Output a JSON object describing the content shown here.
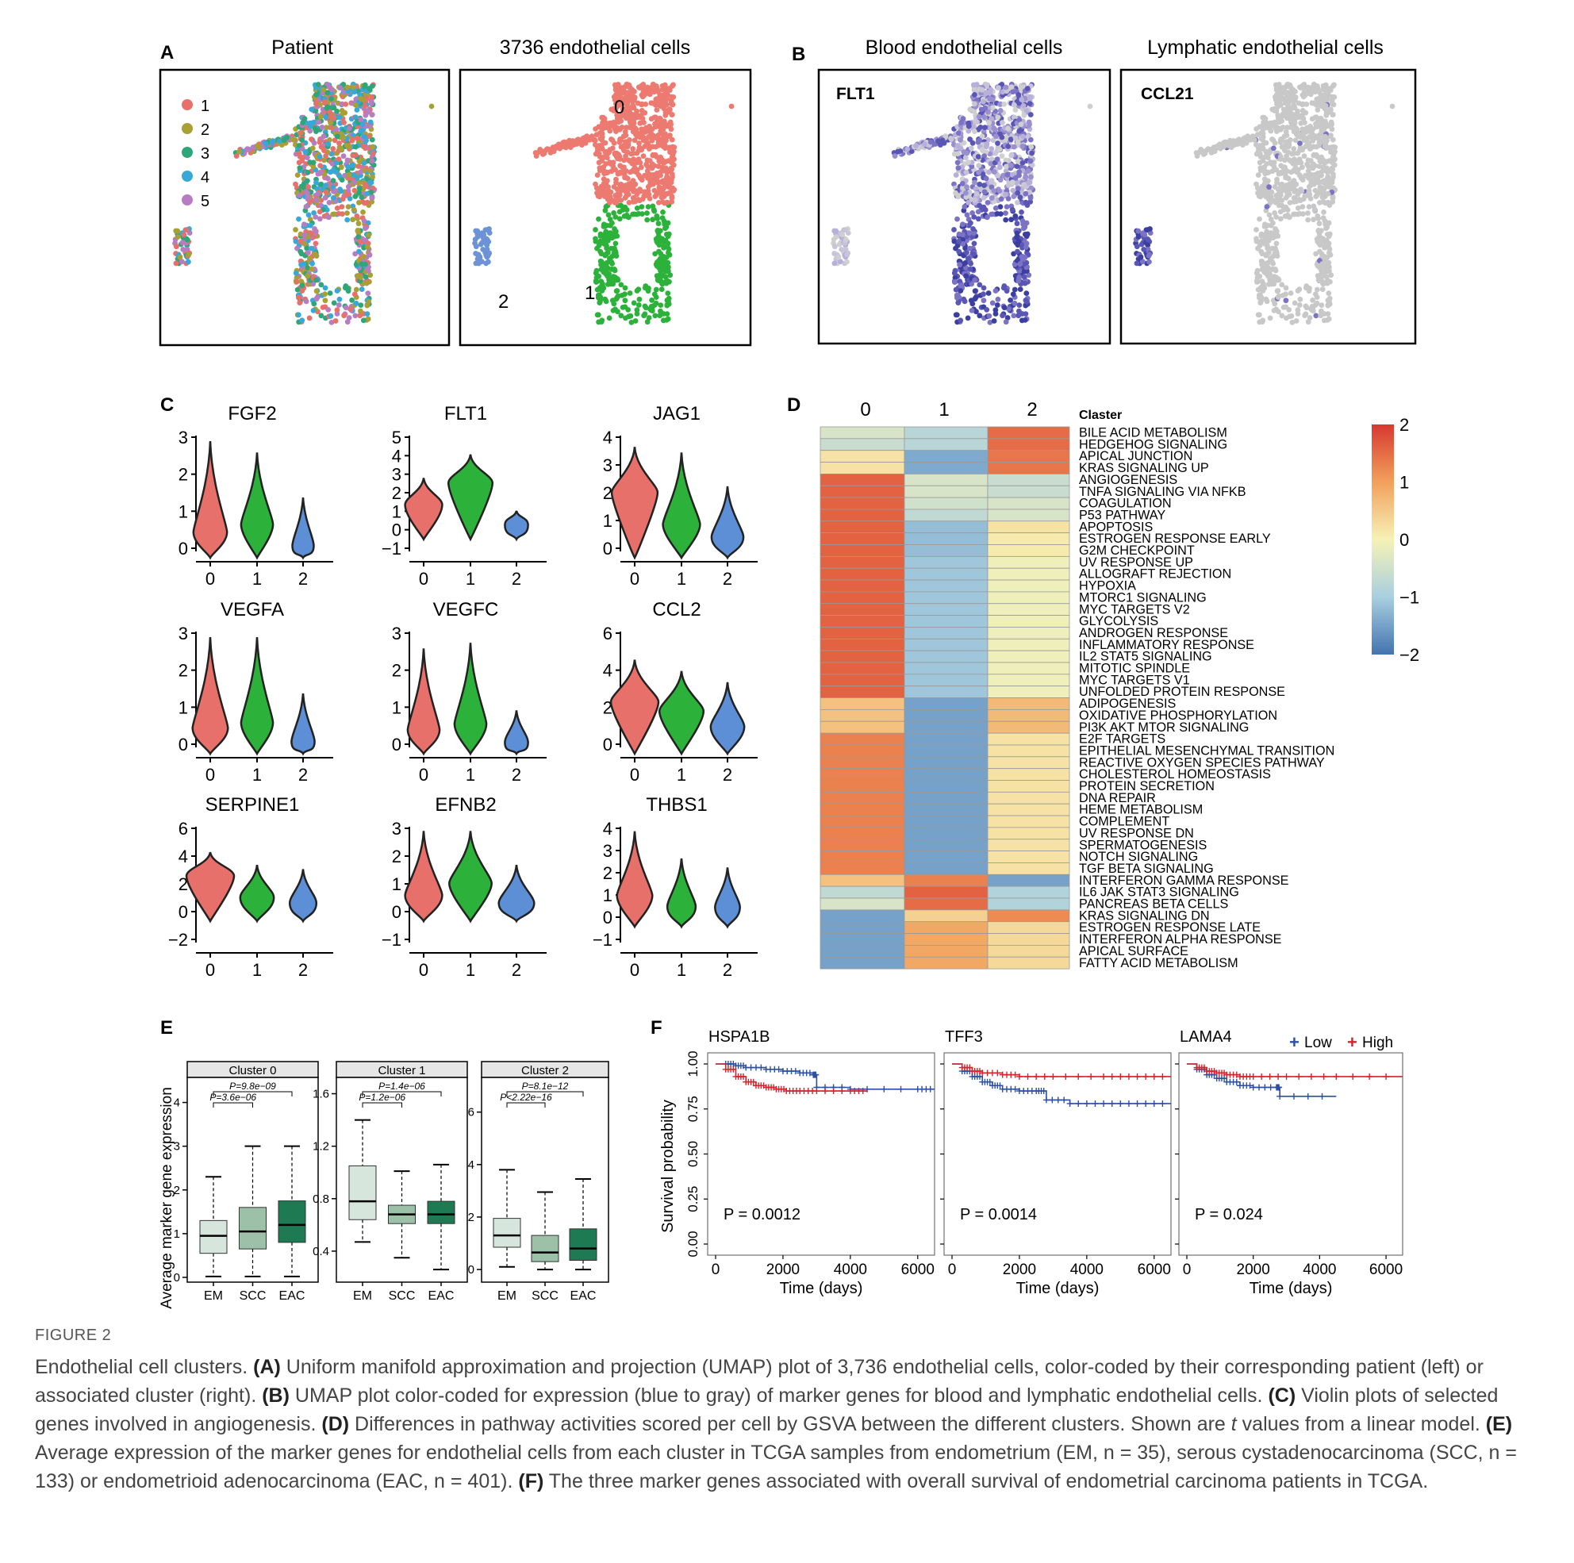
{
  "panels": {
    "A": {
      "letter": "A",
      "title_left": "Patient",
      "title_right": "3736 endothelial cells",
      "legend": [
        "1",
        "2",
        "3",
        "4",
        "5"
      ],
      "legend_colors": [
        "#e8706a",
        "#a8a034",
        "#2fa67a",
        "#38a8d8",
        "#b77dc2"
      ],
      "cluster_labels": [
        "0",
        "1",
        "2"
      ],
      "cluster_colors": [
        "#ec7a70",
        "#2cb23a",
        "#6b93d6"
      ]
    },
    "B": {
      "letter": "B",
      "title_left": "Blood endothelial cells",
      "title_right": "Lymphatic endothelial cells",
      "gene_left": "FLT1",
      "gene_right": "CCL21"
    },
    "C": {
      "letter": "C",
      "x_ticks": [
        "0",
        "1",
        "2"
      ],
      "violins": [
        {
          "gene": "FGF2",
          "y_ticks": [
            "0",
            "1",
            "2",
            "3"
          ]
        },
        {
          "gene": "FLT1",
          "y_ticks": [
            "−1",
            "0",
            "1",
            "2",
            "3",
            "4",
            "5"
          ]
        },
        {
          "gene": "JAG1",
          "y_ticks": [
            "0",
            "1",
            "2",
            "3",
            "4"
          ]
        },
        {
          "gene": "VEGFA",
          "y_ticks": [
            "0",
            "1",
            "2",
            "3"
          ]
        },
        {
          "gene": "VEGFC",
          "y_ticks": [
            "0",
            "1",
            "2",
            "3"
          ]
        },
        {
          "gene": "CCL2",
          "y_ticks": [
            "0",
            "2",
            "4",
            "6"
          ]
        },
        {
          "gene": "SERPINE1",
          "y_ticks": [
            "−2",
            "0",
            "2",
            "4",
            "6"
          ]
        },
        {
          "gene": "EFNB2",
          "y_ticks": [
            "−1",
            "0",
            "1",
            "2",
            "3"
          ]
        },
        {
          "gene": "THBS1",
          "y_ticks": [
            "−1",
            "0",
            "1",
            "2",
            "3",
            "4"
          ]
        }
      ]
    },
    "D": {
      "letter": "D",
      "col_labels": [
        "0",
        "1",
        "2"
      ],
      "row_header": "Claster",
      "colorbar_ticks": [
        "2",
        "1",
        "0",
        "−1",
        "−2"
      ]
    },
    "E": {
      "letter": "E",
      "ylabel": "Average marker gene expression",
      "x_ticks": [
        "EM",
        "SCC",
        "EAC"
      ],
      "boxes": [
        {
          "title": "Cluster 0",
          "y_ticks": [
            "0",
            "1",
            "2",
            "3",
            "4"
          ],
          "p_top": "P=9.8e−09",
          "p_low": "P=3.6e−06"
        },
        {
          "title": "Cluster 1",
          "y_ticks": [
            "0.4",
            "0.8",
            "1.2",
            "1.6"
          ],
          "p_top": "P=1.4e−06",
          "p_low": "P=1.2e−06"
        },
        {
          "title": "Cluster 2",
          "y_ticks": [
            "0",
            "2",
            "4",
            "6"
          ],
          "p_top": "P=8.1e−12",
          "p_low": "P<2.22e−16"
        }
      ]
    },
    "F": {
      "letter": "F",
      "ylabel": "Survival probability",
      "xlabel": "Time (days)",
      "y_ticks": [
        "0.00",
        "0.25",
        "0.50",
        "0.75",
        "1.00"
      ],
      "x_ticks": [
        "0",
        "2000",
        "4000",
        "6000"
      ],
      "legend_low": "Low",
      "legend_high": "High",
      "plots": [
        {
          "gene": "HSPA1B",
          "pval": "P = 0.0012"
        },
        {
          "gene": "TFF3",
          "pval": "P = 0.0014"
        },
        {
          "gene": "LAMA4",
          "pval": "P = 0.024"
        }
      ]
    }
  },
  "chart_data": [
    {
      "type": "heatmap",
      "title": "",
      "columns": [
        "0",
        "1",
        "2"
      ],
      "rows": [
        "BILE ACID METABOLISM",
        "HEDGEHOG SIGNALING",
        "APICAL JUNCTION",
        "KRAS SIGNALING UP",
        "ANGIOGENESIS",
        "TNFA SIGNALING VIA NFKB",
        "COAGULATION",
        "P53 PATHWAY",
        "APOPTOSIS",
        "ESTROGEN RESPONSE EARLY",
        "G2M CHECKPOINT",
        "UV RESPONSE UP",
        "ALLOGRAFT REJECTION",
        "HYPOXIA",
        "MTORC1 SIGNALING",
        "MYC TARGETS V2",
        "GLYCOLYSIS",
        "ANDROGEN RESPONSE",
        "INFLAMMATORY RESPONSE",
        "IL2 STAT5 SIGNALING",
        "MITOTIC SPINDLE",
        "MYC TARGETS V1",
        "UNFOLDED PROTEIN RESPONSE",
        "ADIPOGENESIS",
        "OXIDATIVE PHOSPHORYLATION",
        "PI3K AKT MTOR SIGNALING",
        "E2F TARGETS",
        "EPITHELIAL MESENCHYMAL TRANSITION",
        "REACTIVE OXYGEN SPECIES PATHWAY",
        "CHOLESTEROL HOMEOSTASIS",
        "PROTEIN SECRETION",
        "DNA REPAIR",
        "HEME METABOLISM",
        "COMPLEMENT",
        "UV RESPONSE DN",
        "SPERMATOGENESIS",
        "NOTCH SIGNALING",
        "TGF BETA SIGNALING",
        "INTERFERON GAMMA RESPONSE",
        "IL6 JAK STAT3 SIGNALING",
        "PANCREAS BETA CELLS",
        "KRAS SIGNALING DN",
        "ESTROGEN RESPONSE LATE",
        "INTERFERON ALPHA RESPONSE",
        "APICAL SURFACE",
        "FATTY ACID METABOLISM"
      ],
      "values": [
        [
          -0.4,
          -0.8,
          1.5
        ],
        [
          -0.6,
          -0.8,
          1.5
        ],
        [
          0.2,
          -1.4,
          1.4
        ],
        [
          0.2,
          -1.4,
          1.4
        ],
        [
          1.6,
          -0.4,
          -0.6
        ],
        [
          1.6,
          -0.4,
          -0.6
        ],
        [
          1.6,
          -0.5,
          -0.4
        ],
        [
          1.6,
          -0.7,
          -0.4
        ],
        [
          1.6,
          -1.2,
          0.2
        ],
        [
          1.6,
          -1.2,
          0.1
        ],
        [
          1.6,
          -1.2,
          0.1
        ],
        [
          1.6,
          -1.1,
          -0.1
        ],
        [
          1.6,
          -1.1,
          -0.1
        ],
        [
          1.6,
          -1.1,
          -0.1
        ],
        [
          1.6,
          -1.1,
          -0.1
        ],
        [
          1.6,
          -1.1,
          -0.1
        ],
        [
          1.6,
          -1.1,
          -0.1
        ],
        [
          1.6,
          -1.1,
          -0.1
        ],
        [
          1.6,
          -1.1,
          -0.1
        ],
        [
          1.6,
          -1.1,
          -0.1
        ],
        [
          1.6,
          -1.1,
          -0.1
        ],
        [
          1.6,
          -1.1,
          -0.1
        ],
        [
          1.6,
          -1.1,
          -0.1
        ],
        [
          0.6,
          -1.5,
          0.7
        ],
        [
          0.6,
          -1.5,
          0.7
        ],
        [
          0.6,
          -1.5,
          0.7
        ],
        [
          1.3,
          -1.5,
          0.2
        ],
        [
          1.3,
          -1.5,
          0.2
        ],
        [
          1.3,
          -1.5,
          0.2
        ],
        [
          1.3,
          -1.5,
          0.2
        ],
        [
          1.3,
          -1.5,
          0.2
        ],
        [
          1.3,
          -1.5,
          0.2
        ],
        [
          1.3,
          -1.5,
          0.2
        ],
        [
          1.3,
          -1.5,
          0.2
        ],
        [
          1.3,
          -1.5,
          0.2
        ],
        [
          1.3,
          -1.5,
          0.2
        ],
        [
          1.3,
          -1.5,
          0.2
        ],
        [
          1.3,
          -1.5,
          0.2
        ],
        [
          0.6,
          1.3,
          -1.5
        ],
        [
          -0.7,
          1.6,
          -0.9
        ],
        [
          -0.4,
          1.5,
          -0.9
        ],
        [
          -1.5,
          0.4,
          1.2
        ],
        [
          -1.5,
          0.9,
          0.3
        ],
        [
          -1.5,
          0.9,
          0.3
        ],
        [
          -1.5,
          0.9,
          0.3
        ],
        [
          -1.5,
          0.9,
          0.3
        ]
      ],
      "colorbar_range": [
        -2,
        2
      ]
    },
    {
      "type": "box",
      "title": "Cluster 0",
      "categories": [
        "EM",
        "SCC",
        "EAC"
      ],
      "five_number": [
        [
          0.02,
          0.55,
          0.95,
          1.3,
          2.3
        ],
        [
          0.02,
          0.65,
          1.05,
          1.6,
          3.0
        ],
        [
          0.02,
          0.8,
          1.2,
          1.75,
          3.0
        ]
      ],
      "ylim": [
        0,
        4.5
      ]
    },
    {
      "type": "box",
      "title": "Cluster 1",
      "categories": [
        "EM",
        "SCC",
        "EAC"
      ],
      "five_number": [
        [
          0.47,
          0.64,
          0.78,
          1.05,
          1.4
        ],
        [
          0.35,
          0.61,
          0.68,
          0.75,
          1.01
        ],
        [
          0.26,
          0.61,
          0.68,
          0.78,
          1.06
        ]
      ],
      "ylim": [
        0.2,
        1.7
      ]
    },
    {
      "type": "box",
      "title": "Cluster 2",
      "categories": [
        "EM",
        "SCC",
        "EAC"
      ],
      "five_number": [
        [
          0.1,
          0.85,
          1.3,
          1.95,
          3.8
        ],
        [
          0.0,
          0.3,
          0.65,
          1.3,
          2.95
        ],
        [
          0.0,
          0.35,
          0.8,
          1.55,
          3.45
        ]
      ],
      "ylim": [
        -0.3,
        7.2
      ]
    },
    {
      "type": "line",
      "title": "HSPA1B",
      "xlabel": "Time (days)",
      "ylabel": "Survival probability",
      "series": [
        {
          "name": "Low",
          "x": [
            0,
            300,
            600,
            900,
            1500,
            2000,
            2500,
            2900,
            3000,
            4000,
            6000,
            6500
          ],
          "y": [
            1,
            1,
            0.99,
            0.98,
            0.97,
            0.96,
            0.95,
            0.94,
            0.87,
            0.86,
            0.86,
            0.86
          ]
        },
        {
          "name": "High",
          "x": [
            0,
            300,
            600,
            900,
            1200,
            1500,
            1800,
            2100,
            2500,
            3000,
            4000,
            4500
          ],
          "y": [
            1,
            0.97,
            0.93,
            0.9,
            0.88,
            0.87,
            0.86,
            0.85,
            0.85,
            0.85,
            0.85,
            0.85
          ]
        }
      ],
      "xlim": [
        0,
        6500
      ],
      "ylim": [
        0,
        1
      ]
    },
    {
      "type": "line",
      "title": "TFF3",
      "xlabel": "Time (days)",
      "ylabel": "Survival probability",
      "series": [
        {
          "name": "Low",
          "x": [
            0,
            300,
            600,
            900,
            1200,
            1500,
            2000,
            2500,
            2800,
            3500,
            4500,
            5500,
            6500
          ],
          "y": [
            1,
            0.96,
            0.93,
            0.9,
            0.88,
            0.86,
            0.85,
            0.85,
            0.8,
            0.78,
            0.78,
            0.78,
            0.78
          ]
        },
        {
          "name": "High",
          "x": [
            0,
            300,
            600,
            900,
            1500,
            2000,
            3000,
            4500,
            5500,
            6500
          ],
          "y": [
            1,
            0.98,
            0.96,
            0.95,
            0.94,
            0.93,
            0.93,
            0.93,
            0.93,
            0.93
          ]
        }
      ],
      "xlim": [
        0,
        6500
      ],
      "ylim": [
        0,
        1
      ]
    },
    {
      "type": "line",
      "title": "LAMA4",
      "xlabel": "Time (days)",
      "ylabel": "Survival probability",
      "series": [
        {
          "name": "Low",
          "x": [
            0,
            300,
            600,
            900,
            1200,
            1600,
            2000,
            2700,
            2800,
            4500
          ],
          "y": [
            1,
            0.97,
            0.94,
            0.92,
            0.9,
            0.88,
            0.87,
            0.87,
            0.82,
            0.82
          ]
        },
        {
          "name": "High",
          "x": [
            0,
            300,
            600,
            900,
            1200,
            1600,
            2000,
            3000,
            4500,
            6500
          ],
          "y": [
            1,
            0.98,
            0.96,
            0.95,
            0.94,
            0.93,
            0.93,
            0.93,
            0.93,
            0.93
          ]
        }
      ],
      "xlim": [
        0,
        6500
      ],
      "ylim": [
        0,
        1
      ]
    }
  ],
  "caption": {
    "label": "FIGURE 2",
    "intro": "Endothelial cell clusters. ",
    "a_label": "(A)",
    "a_text": " Uniform manifold approximation and projection (UMAP) plot of 3,736 endothelial cells, color-coded by their corresponding patient (left) or associated cluster (right). ",
    "b_label": "(B)",
    "b_text": " UMAP plot color-coded for expression (blue to gray) of marker genes for blood and lymphatic endothelial cells. ",
    "c_label": "(C)",
    "c_text": " Violin plots of selected genes involved in angiogenesis. ",
    "d_label": "(D)",
    "d_text1": " Differences in pathway activities scored per cell by GSVA between the different clusters. Shown are ",
    "d_t": "t",
    "d_text2": " values from a linear model. ",
    "e_label": "(E)",
    "e_text": " Average expression of the marker genes for endothelial cells from each cluster in TCGA samples from endometrium (EM, n = 35), serous cystadenocarcinoma (SCC, n = 133) or endometrioid adenocarcinoma (EAC, n = 401). ",
    "f_label": "(F)",
    "f_text": " The three marker genes associated with overall survival of endometrial carcinoma patients in TCGA."
  }
}
